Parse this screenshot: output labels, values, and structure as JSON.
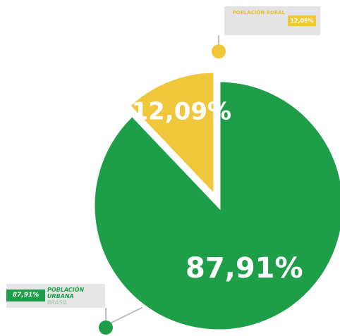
{
  "chart_data": {
    "type": "pie",
    "slices": [
      {
        "label": "POBLACIÓN URBANA",
        "value": 87.91,
        "display": "87,91%",
        "color": "#1f9e4a"
      },
      {
        "label": "POBLACIÓN RURAL",
        "value": 12.09,
        "display": "12,09%",
        "color": "#f0c63a"
      }
    ],
    "legend": [
      "POBLACIÓN RURAL",
      "POBLACIÓN URBANA"
    ],
    "legend_placement": "callouts"
  },
  "callouts": {
    "rural": {
      "text": "POBLACIÓN RURAL",
      "value": "12,09%"
    },
    "urban": {
      "value": "87,91%",
      "line1": "POBLACIÓN",
      "line2": "URBANA",
      "line3": "BRASIL"
    }
  }
}
